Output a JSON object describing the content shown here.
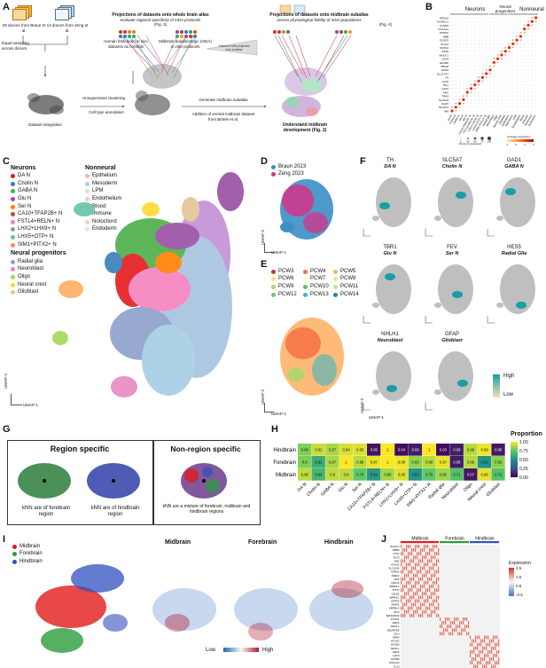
{
  "panels": {
    "A": "A",
    "B": "B",
    "C": "C",
    "D": "D",
    "E": "E",
    "F": "F",
    "G": "G",
    "H": "H",
    "I": "I",
    "J": "J"
  },
  "panelA": {
    "donors_braun": "28 donors from Braun et al.",
    "donors_zeng": "13 donors from Zeng et al.",
    "equal_sampling": "Equal sampling across donors",
    "dataset_integration": "Dataset integration",
    "unsupervised_clustering": "Unsupervised clustering",
    "cell_type_annotation": "Cell type annotation",
    "proj_whole_title": "Projections of datasets onto whole brain atlas",
    "proj_whole_sub": "evaluate regional specificity of mDA protocols",
    "proj_whole_fig": "(Fig. 3)",
    "human_fetal": "Human fetal brain in vivo datasets as controls",
    "midbrain_da": "Midbrain dopaminergic (mDA) in vitro protocols",
    "subset_cells": "Subset of cells projected onto subatlas",
    "proj_mid_title": "Projections of datasets onto midbrain subatlas",
    "proj_mid_sub": "assess physiological fidelity of mDA populations",
    "proj_mid_fig": "(Fig. 4)",
    "generate_subatlas": "Generate midbrain subatlas",
    "addition_ventral": "Addition of ventral midbrain dataset from Birtele et al.",
    "understand": "Understand midbrain development (Fig. 2)"
  },
  "panelB": {
    "groups": [
      "Neurons",
      "Neural progenitors",
      "Nonneural"
    ],
    "genes": [
      "APOA2",
      "ALDH1L1",
      "CLDN5",
      "COL1A1",
      "PTPRC",
      "HBB",
      "FOXP2",
      "OLIG2",
      "SOX10",
      "PAX6",
      "NKX2-1",
      "LHX9",
      "HOXB2",
      "TBX18",
      "GAD2",
      "SLC17A7",
      "TH",
      "CA10",
      "ISL1",
      "LHX2",
      "FEV",
      "TPH2",
      "SLC6A4",
      "CHAT",
      "SLC5A7",
      "INA"
    ],
    "celltypes": [
      "DA N",
      "Cholin N",
      "GABA N",
      "Glu N",
      "Ser N",
      "CA10+TFAP2B+ N",
      "FSTL4+RELN+ N",
      "LHX2+LHX9+ N",
      "LHX5+OTP+ N",
      "SIM1+PITX2+ N",
      "Radial glia",
      "Neuroblast",
      "Oligo",
      "Neural crest",
      "Glioblast",
      "Epithelium",
      "Mesoderm",
      "LPM",
      "Endothelium",
      "Blood",
      "Immune",
      "Notochord",
      "Endoderm"
    ],
    "pct_label": "Percent expressed",
    "pct_ticks": [
      "0",
      "25",
      "50",
      "75",
      "100"
    ],
    "avg_label": "Average expression",
    "avg_ticks": [
      "-1",
      "0",
      "1",
      "2"
    ]
  },
  "panelC": {
    "neurons_title": "Neurons",
    "neurons": [
      {
        "label": "DA N",
        "color": "#e41a1c"
      },
      {
        "label": "Cholin N",
        "color": "#377eb8"
      },
      {
        "label": "GABA N",
        "color": "#4daf4a"
      },
      {
        "label": "Glu N",
        "color": "#984ea3"
      },
      {
        "label": "Ser N",
        "color": "#ff7f00"
      },
      {
        "label": "CA10+TFAP2B+ N",
        "color": "#a65628"
      },
      {
        "label": "FSTL4+RELN+ N",
        "color": "#f781bf"
      },
      {
        "label": "LHX2+LHX9+ N",
        "color": "#999999"
      },
      {
        "label": "LHX5+OTP+ N",
        "color": "#66c2a5"
      },
      {
        "label": "SIM1+PITX2+ N",
        "color": "#fc8d62"
      }
    ],
    "prog_title": "Neural progenitors",
    "progenitors": [
      {
        "label": "Radial glia",
        "color": "#8da0cb"
      },
      {
        "label": "Neuroblast",
        "color": "#e78ac3"
      },
      {
        "label": "Oligo",
        "color": "#a6d854"
      },
      {
        "label": "Neural crest",
        "color": "#ffd92f"
      },
      {
        "label": "Glioblast",
        "color": "#e5c494"
      }
    ],
    "nonneural_title": "Nonneural",
    "nonneural": [
      {
        "label": "Epithelium",
        "color": "#fbb4ae"
      },
      {
        "label": "Mesoderm",
        "color": "#b3cde3"
      },
      {
        "label": "LPM",
        "color": "#ccebc5"
      },
      {
        "label": "Endothelium",
        "color": "#decbe4"
      },
      {
        "label": "Blood",
        "color": "#fed9a6"
      },
      {
        "label": "Immune",
        "color": "#ffffcc"
      },
      {
        "label": "Notochord",
        "color": "#e5d8bd"
      },
      {
        "label": "Endoderm",
        "color": "#fddaec"
      }
    ],
    "umap1": "UMAP-1",
    "umap2": "UMAP-2"
  },
  "panelD": {
    "legend": [
      {
        "label": "Braun 2023",
        "color": "#3b8fc4"
      },
      {
        "label": "Zeng 2023",
        "color": "#d6338a"
      }
    ],
    "umap1": "UMAP-1",
    "umap2": "UMAP-2"
  },
  "panelE": {
    "legend": [
      {
        "label": "PCW3",
        "color": "#d73027"
      },
      {
        "label": "PCW4",
        "color": "#f46d43"
      },
      {
        "label": "PCW5",
        "color": "#fdae61"
      },
      {
        "label": "PCW6",
        "color": "#fee08b"
      },
      {
        "label": "PCW7",
        "color": "#ffffbf"
      },
      {
        "label": "PCW8",
        "color": "#d9ef8b"
      },
      {
        "label": "PCW9",
        "color": "#a6d96a"
      },
      {
        "label": "PCW10",
        "color": "#66bd63"
      },
      {
        "label": "PCW11",
        "color": "#c2e699"
      },
      {
        "label": "PCW12",
        "color": "#74c476"
      },
      {
        "label": "PCW13",
        "color": "#41b6c4"
      },
      {
        "label": "PCW14",
        "color": "#2c7fb8"
      }
    ],
    "umap1": "UMAP-1",
    "umap2": "UMAP-2"
  },
  "panelF": {
    "genes": [
      {
        "gene": "TH",
        "type": "DA N"
      },
      {
        "gene": "SLC5A7",
        "type": "Cholin N"
      },
      {
        "gene": "GAD1",
        "type": "GABA N"
      },
      {
        "gene": "TBR1",
        "type": "Glu N"
      },
      {
        "gene": "FEV",
        "type": "Ser N"
      },
      {
        "gene": "HES5",
        "type": "Radial Glia"
      },
      {
        "gene": "NHLH1",
        "type": "Neuroblast"
      },
      {
        "gene": "GFAP",
        "type": "Glioblast"
      }
    ],
    "high": "High",
    "low": "Low",
    "umap1": "UMAP-1",
    "umap2": "UMAP-2"
  },
  "panelG": {
    "region_specific": "Region specific",
    "non_region_specific": "Non-region specific",
    "knn_forebrain": "kNN are of forebrain region",
    "knn_hindbrain": "kNN are of hindbrain region",
    "knn_mixture": "kNN are a mixture of forebrain, midbrain and hindbrain regions"
  },
  "panelH": {
    "rows": [
      "Hindbrain",
      "Forebrain",
      "Midbrain"
    ],
    "cols": [
      "DA N",
      "Cholin N",
      "GABA N",
      "Glu N",
      "Ser N",
      "CA10+TFAP2B+ N",
      "FSTL4+RELN+ N",
      "LHX2+LHX9+ N",
      "LHX5+OTP+ N",
      "SIM1+PITX2+ N",
      "Radial glia",
      "Neuroblast",
      "Oligo",
      "Neural crest",
      "Glioblast"
    ],
    "values": [
      [
        0.8,
        0.92,
        0.87,
        0.94,
        0.95,
        0.06,
        1,
        0.04,
        0.09,
        1,
        0.03,
        0.09,
        0.89,
        0.98,
        0.08
      ],
      [
        0.8,
        0.62,
        0.87,
        1,
        0.89,
        0.97,
        1,
        0.98,
        0.83,
        0.89,
        0.97,
        0.08,
        0.89,
        0.51,
        0.82
      ],
      [
        0.9,
        0.66,
        0.9,
        0.9,
        0.75,
        0.54,
        0.86,
        0.95,
        0.52,
        0.75,
        0.85,
        0.71,
        0.07,
        0.96,
        0.72
      ]
    ],
    "labels": [
      [
        "0.80",
        "0.92",
        "0.87",
        "0.94",
        "0.95",
        "0.06",
        "1",
        "0.04",
        "0.09",
        "1",
        "0.03",
        "0.09",
        "0.89",
        "0.98",
        "0.08"
      ],
      [
        "0.8",
        "0.62",
        "0.87",
        "1",
        "0.89",
        "0.97",
        "1",
        "0.98",
        "0.83",
        "0.89",
        "0.97",
        "0.08",
        "0.89",
        "0.51",
        "0.82"
      ],
      [
        "0.90",
        "0.66",
        "0.9",
        "0.9",
        "0.75",
        "0.54",
        "0.86",
        "0.95",
        "0.52",
        "0.75",
        "0.85",
        "0.71",
        "0.07",
        "0.96",
        "0.72"
      ]
    ],
    "legend_title": "Proportion",
    "legend_ticks": [
      "1.00",
      "0.75",
      "0.50",
      "0.25",
      "0.00"
    ]
  },
  "panelI": {
    "legend": [
      {
        "label": "Midbrain",
        "color": "#e41a1c"
      },
      {
        "label": "Forebrain",
        "color": "#2a9d3a"
      },
      {
        "label": "Hindbrain",
        "color": "#3050c0"
      }
    ],
    "titles": [
      "Midbrain",
      "Forebrain",
      "Hindbrain"
    ],
    "low": "Low",
    "high": "High"
  },
  "panelJ": {
    "groups": [
      "Midbrain",
      "Forebrain",
      "Hindbrain"
    ],
    "group_colors": [
      "#e41a1c",
      "#2a9d3a",
      "#3050c0"
    ],
    "genes": [
      "ELAVL3",
      "DMB3",
      "OTX2",
      "PLS3",
      "EN1",
      "FOXA2",
      "SLC10A4",
      "GFRA1",
      "NR2F2",
      "EN2",
      "LMX1A",
      "BARHL1",
      "PITX2",
      "CALB2",
      "BARHL2",
      "GFRA2",
      "NR4A2",
      "KIRREL3",
      "ZIC3",
      "ARHGAP24",
      "FOXG1",
      "EMX2",
      "NKX2-1",
      "NEUROD6",
      "ZIC4",
      "NRSF",
      "HOXA2",
      "HOXB3",
      "NKX6-1",
      "GBX2",
      "LHX4",
      "HOXB2",
      "PHOX2A",
      "TLX3"
    ],
    "legend_title": "Expression",
    "legend_ticks": [
      "2.5",
      "1.5",
      "0.5",
      "-0.5"
    ]
  }
}
